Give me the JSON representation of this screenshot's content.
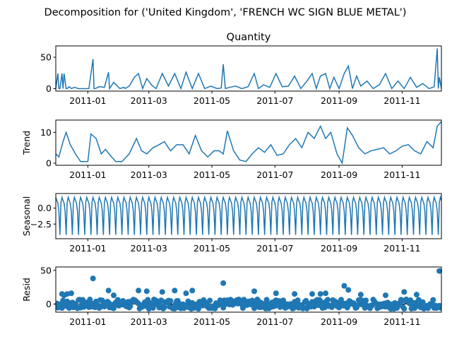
{
  "figure": {
    "suptitle": "Decomposition for ('United Kingdom', 'FRENCH WC SIGN BLUE METAL')"
  },
  "colors": {
    "series": "#1f77b4",
    "axis": "#000000",
    "background": "#ffffff"
  },
  "chart_data": [
    {
      "type": "line",
      "panel": "observed",
      "title": "Quantity",
      "ylabel": "",
      "xlabel": "",
      "xlim": [
        "2010-12-01",
        "2011-12-09"
      ],
      "ylim": [
        -4,
        68
      ],
      "yticks": [
        0,
        50
      ],
      "ytick_labels": [
        "0",
        "50"
      ],
      "xtick_labels": [
        "2011-01",
        "2011-03",
        "2011-05",
        "2011-07",
        "2011-09",
        "2011-11"
      ],
      "series": [
        {
          "values_desc": "daily quantity, mostly 0-5 with spikes",
          "x": [
            "2010-12-01",
            "2010-12-03",
            "2010-12-04",
            "2010-12-05",
            "2010-12-07",
            "2010-12-08",
            "2010-12-09",
            "2010-12-11",
            "2010-12-12",
            "2010-12-14",
            "2010-12-16",
            "2010-12-19",
            "2010-12-23",
            "2011-01-02",
            "2011-01-06",
            "2011-01-07",
            "2011-01-08",
            "2011-01-12",
            "2011-01-17",
            "2011-01-21",
            "2011-01-22",
            "2011-01-26",
            "2011-02-01",
            "2011-02-05",
            "2011-02-06",
            "2011-02-10",
            "2011-02-15",
            "2011-02-19",
            "2011-02-23",
            "2011-02-27",
            "2011-03-04",
            "2011-03-08",
            "2011-03-14",
            "2011-03-20",
            "2011-03-26",
            "2011-04-01",
            "2011-04-06",
            "2011-04-12",
            "2011-04-18",
            "2011-04-24",
            "2011-04-30",
            "2011-05-06",
            "2011-05-10",
            "2011-05-12",
            "2011-05-14",
            "2011-05-18",
            "2011-05-24",
            "2011-05-30",
            "2011-06-05",
            "2011-06-11",
            "2011-06-15",
            "2011-06-20",
            "2011-06-26",
            "2011-07-02",
            "2011-07-08",
            "2011-07-14",
            "2011-07-20",
            "2011-07-26",
            "2011-08-01",
            "2011-08-06",
            "2011-08-10",
            "2011-08-14",
            "2011-08-19",
            "2011-08-23",
            "2011-08-27",
            "2011-09-01",
            "2011-09-06",
            "2011-09-10",
            "2011-09-14",
            "2011-09-18",
            "2011-09-22",
            "2011-09-28",
            "2011-10-04",
            "2011-10-10",
            "2011-10-16",
            "2011-10-22",
            "2011-10-28",
            "2011-11-03",
            "2011-11-09",
            "2011-11-15",
            "2011-11-21",
            "2011-11-27",
            "2011-12-02",
            "2011-12-05",
            "2011-12-06",
            "2011-12-07",
            "2011-12-09"
          ],
          "y": [
            0,
            24,
            0,
            0,
            24,
            0,
            24,
            0,
            0,
            3,
            0,
            2,
            0,
            0,
            47,
            0,
            0,
            3,
            2,
            26,
            0,
            10,
            0,
            2,
            0,
            4,
            18,
            24,
            0,
            16,
            5,
            0,
            24,
            4,
            24,
            0,
            26,
            0,
            24,
            0,
            4,
            0,
            1,
            39,
            0,
            2,
            4,
            0,
            3,
            24,
            0,
            6,
            2,
            24,
            3,
            4,
            20,
            0,
            12,
            24,
            0,
            20,
            24,
            0,
            18,
            0,
            24,
            36,
            0,
            20,
            4,
            12,
            0,
            6,
            24,
            0,
            12,
            0,
            18,
            2,
            8,
            0,
            3,
            64,
            0,
            18,
            0
          ]
        }
      ]
    },
    {
      "type": "line",
      "panel": "trend",
      "title": "",
      "ylabel": "Trend",
      "xlabel": "",
      "xlim": [
        "2010-12-01",
        "2011-12-09"
      ],
      "ylim": [
        -0.7,
        14
      ],
      "yticks": [
        0,
        10
      ],
      "ytick_labels": [
        "0",
        "10"
      ],
      "xtick_labels": [
        "2011-01",
        "2011-03",
        "2011-05",
        "2011-07",
        "2011-09",
        "2011-11"
      ],
      "series": [
        {
          "x": [
            "2010-12-01",
            "2010-12-04",
            "2010-12-08",
            "2010-12-11",
            "2010-12-15",
            "2010-12-20",
            "2010-12-25",
            "2011-01-01",
            "2011-01-04",
            "2011-01-09",
            "2011-01-14",
            "2011-01-18",
            "2011-01-24",
            "2011-01-28",
            "2011-02-03",
            "2011-02-10",
            "2011-02-17",
            "2011-02-22",
            "2011-02-27",
            "2011-03-05",
            "2011-03-11",
            "2011-03-16",
            "2011-03-22",
            "2011-03-28",
            "2011-04-03",
            "2011-04-09",
            "2011-04-15",
            "2011-04-21",
            "2011-04-27",
            "2011-05-03",
            "2011-05-08",
            "2011-05-12",
            "2011-05-16",
            "2011-05-22",
            "2011-05-28",
            "2011-06-03",
            "2011-06-09",
            "2011-06-15",
            "2011-06-21",
            "2011-06-27",
            "2011-07-03",
            "2011-07-09",
            "2011-07-15",
            "2011-07-21",
            "2011-07-27",
            "2011-08-02",
            "2011-08-08",
            "2011-08-14",
            "2011-08-19",
            "2011-08-24",
            "2011-08-30",
            "2011-09-04",
            "2011-09-09",
            "2011-09-14",
            "2011-09-20",
            "2011-09-26",
            "2011-10-02",
            "2011-10-08",
            "2011-10-14",
            "2011-10-20",
            "2011-10-26",
            "2011-11-01",
            "2011-11-07",
            "2011-11-13",
            "2011-11-19",
            "2011-11-25",
            "2011-12-01",
            "2011-12-05",
            "2011-12-09"
          ],
          "y": [
            3,
            2,
            7,
            10,
            6,
            3,
            0.5,
            0.5,
            9.5,
            8,
            3,
            4.5,
            2,
            0.5,
            0.5,
            3,
            8,
            4,
            3,
            5,
            6,
            7,
            4,
            6,
            6,
            3,
            9,
            4,
            2,
            4,
            4,
            3,
            10.5,
            4,
            1,
            0.5,
            3,
            5,
            3.5,
            6,
            2.5,
            3,
            6,
            8,
            5,
            10,
            8,
            12,
            8,
            10,
            3,
            0,
            11.5,
            9,
            5,
            3,
            4,
            4.5,
            5,
            3,
            4,
            5.5,
            6,
            4,
            3,
            7,
            5,
            12,
            13.5
          ]
        }
      ]
    },
    {
      "type": "line",
      "panel": "seasonal",
      "title": "",
      "ylabel": "Seasonal",
      "xlabel": "",
      "xlim": [
        "2010-12-01",
        "2011-12-09"
      ],
      "ylim": [
        -4.8,
        2.3
      ],
      "yticks": [
        0.0,
        -2.5
      ],
      "ytick_labels": [
        "0.0",
        "−2.5"
      ],
      "xtick_labels": [
        "2011-01",
        "2011-03",
        "2011-05",
        "2011-07",
        "2011-09",
        "2011-11"
      ],
      "series": [
        {
          "period_days": 6,
          "pattern_desc": "repeating weekly pattern, peak about 1.7, trough about -4.2",
          "cycle": [
            1.7,
            1.2,
            0.8,
            -0.5,
            -4.2,
            0.9
          ]
        }
      ]
    },
    {
      "type": "scatter",
      "panel": "resid",
      "title": "",
      "ylabel": "Resid",
      "xlabel": "",
      "xlim": [
        "2010-12-01",
        "2011-12-09"
      ],
      "ylim": [
        -12,
        55
      ],
      "yticks": [
        0,
        50
      ],
      "ytick_labels": [
        "0",
        "50"
      ],
      "xtick_labels": [
        "2011-01",
        "2011-03",
        "2011-05",
        "2011-07",
        "2011-09",
        "2011-11"
      ],
      "series": [
        {
          "x": [
            "2010-12-03",
            "2010-12-07",
            "2010-12-09",
            "2010-12-12",
            "2010-12-16",
            "2011-01-06",
            "2011-01-21",
            "2011-01-26",
            "2011-02-19",
            "2011-02-27",
            "2011-03-14",
            "2011-03-26",
            "2011-04-06",
            "2011-04-12",
            "2011-05-12",
            "2011-06-11",
            "2011-07-02",
            "2011-07-20",
            "2011-08-06",
            "2011-08-14",
            "2011-08-19",
            "2011-09-06",
            "2011-09-10",
            "2011-09-22",
            "2011-10-16",
            "2011-11-03",
            "2011-11-15",
            "2011-12-07"
          ],
          "y": [
            0,
            15,
            13,
            15,
            16,
            38,
            20,
            13,
            20,
            19,
            18,
            20,
            16,
            20,
            31,
            19,
            16,
            15,
            15,
            15,
            16,
            27,
            21,
            14,
            13,
            18,
            14,
            49
          ]
        }
      ]
    }
  ]
}
